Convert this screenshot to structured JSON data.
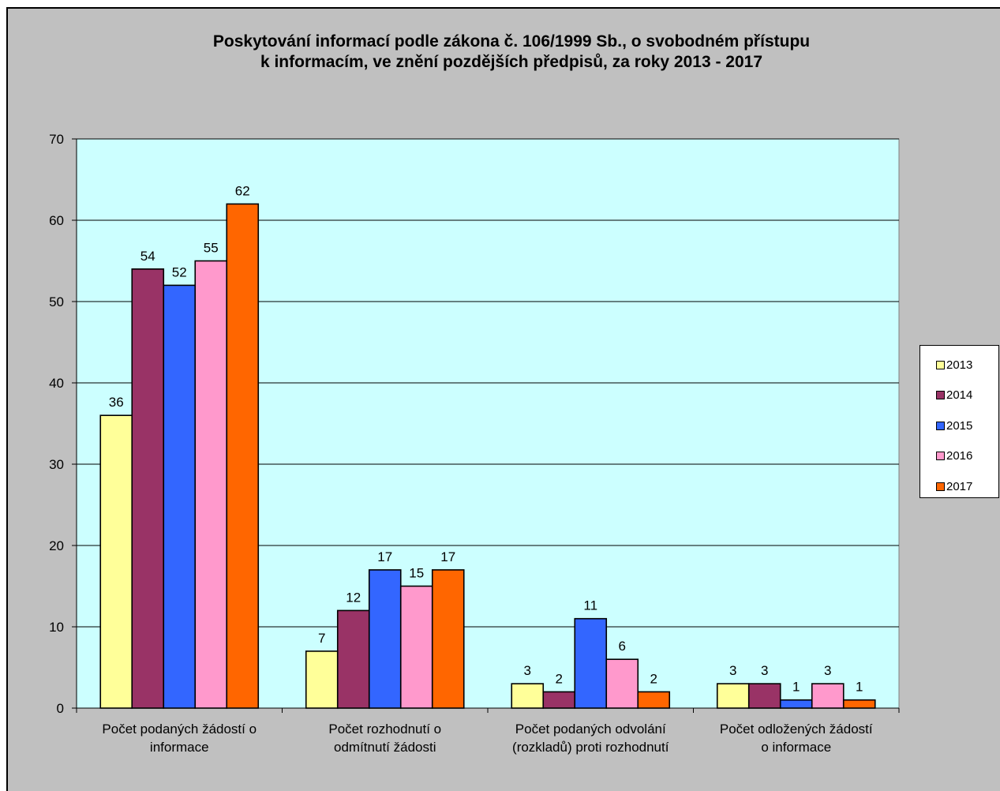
{
  "chart_data": {
    "type": "bar",
    "title_lines": [
      "Poskytování informací podle zákona č. 106/1999 Sb., o svobodném přístupu",
      "k informacím, ve znění pozdějších předpisů, za roky 2013 - 2017"
    ],
    "categories": [
      [
        "Počet podaných žádostí o",
        "informace"
      ],
      [
        "Počet rozhodnutí o",
        "odmítnutí žádosti"
      ],
      [
        "Počet podaných odvolání",
        "(rozkladů) proti rozhodnutí"
      ],
      [
        "Počet odložených žádostí",
        "o informace"
      ]
    ],
    "series": [
      {
        "name": "2013",
        "color": "#ffff99",
        "values": [
          36,
          7,
          3,
          3
        ]
      },
      {
        "name": "2014",
        "color": "#993366",
        "values": [
          54,
          12,
          2,
          3
        ]
      },
      {
        "name": "2015",
        "color": "#3366ff",
        "values": [
          52,
          17,
          11,
          1
        ]
      },
      {
        "name": "2016",
        "color": "#ff99cc",
        "values": [
          55,
          15,
          6,
          3
        ]
      },
      {
        "name": "2017",
        "color": "#ff6600",
        "values": [
          62,
          17,
          2,
          1
        ]
      }
    ],
    "ylim": [
      0,
      70
    ],
    "yticks": [
      0,
      10,
      20,
      30,
      40,
      50,
      60,
      70
    ],
    "grid": true,
    "plot_background": "#ccffff",
    "chart_background": "#c0c0c0",
    "legend_position": "right"
  }
}
